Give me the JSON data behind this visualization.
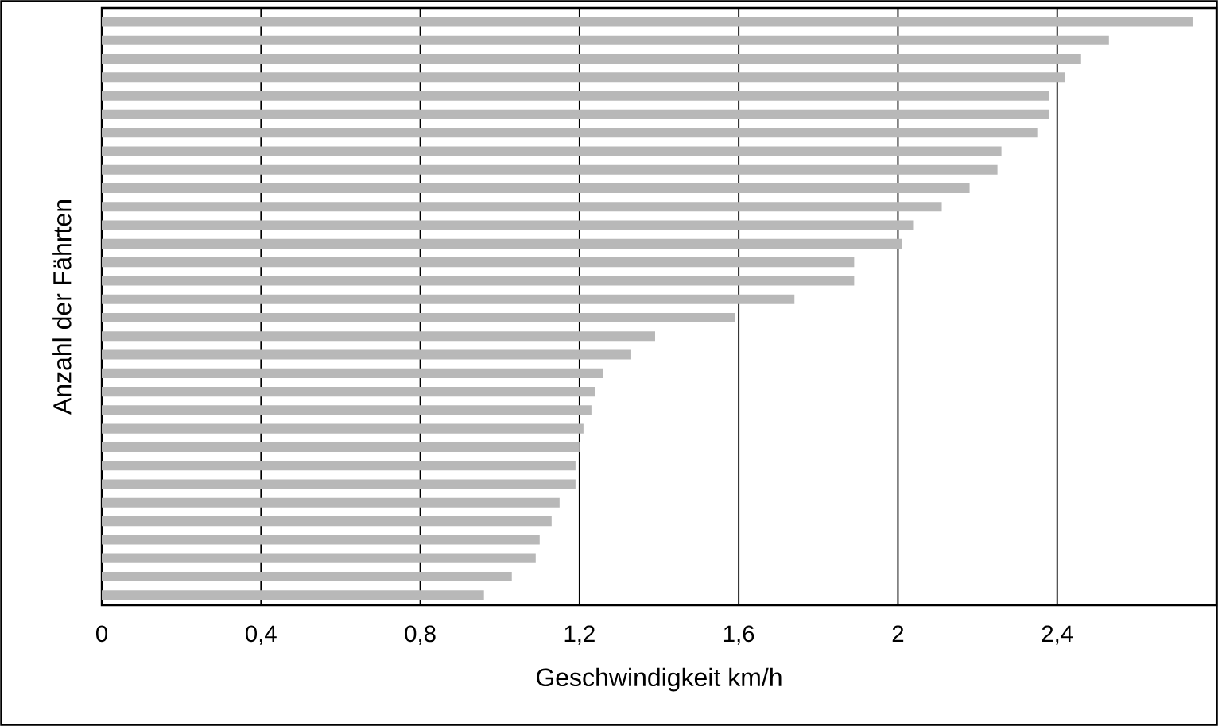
{
  "chart_data": {
    "type": "bar",
    "orientation": "horizontal",
    "xlabel": "Geschwindigkeit km/h",
    "ylabel": "Anzahl der Fährten",
    "categories": [
      null,
      null,
      null,
      null,
      null,
      null,
      null,
      null,
      null,
      null,
      null,
      null,
      null,
      null,
      null,
      null,
      null,
      null,
      null,
      null,
      null,
      null,
      null,
      null,
      null,
      null,
      null,
      null,
      null,
      null,
      null,
      null
    ],
    "values": [
      2.74,
      2.53,
      2.46,
      2.42,
      2.38,
      2.38,
      2.35,
      2.26,
      2.25,
      2.18,
      2.11,
      2.04,
      2.01,
      1.89,
      1.89,
      1.74,
      1.59,
      1.39,
      1.33,
      1.26,
      1.24,
      1.23,
      1.21,
      1.2,
      1.19,
      1.19,
      1.15,
      1.13,
      1.1,
      1.09,
      1.03,
      0.96
    ],
    "color": "#b8b8b8",
    "xlim": [
      0,
      2.8
    ],
    "xticks": [
      0,
      {
        "value": 0.4,
        "label": "0,4"
      },
      {
        "value": 0.8,
        "label": "0,8"
      },
      {
        "value": 1.2,
        "label": "1,2"
      },
      {
        "value": 1.6,
        "label": "1,6"
      },
      2,
      {
        "value": 2.4,
        "label": "2,4"
      }
    ],
    "grid": "x"
  }
}
